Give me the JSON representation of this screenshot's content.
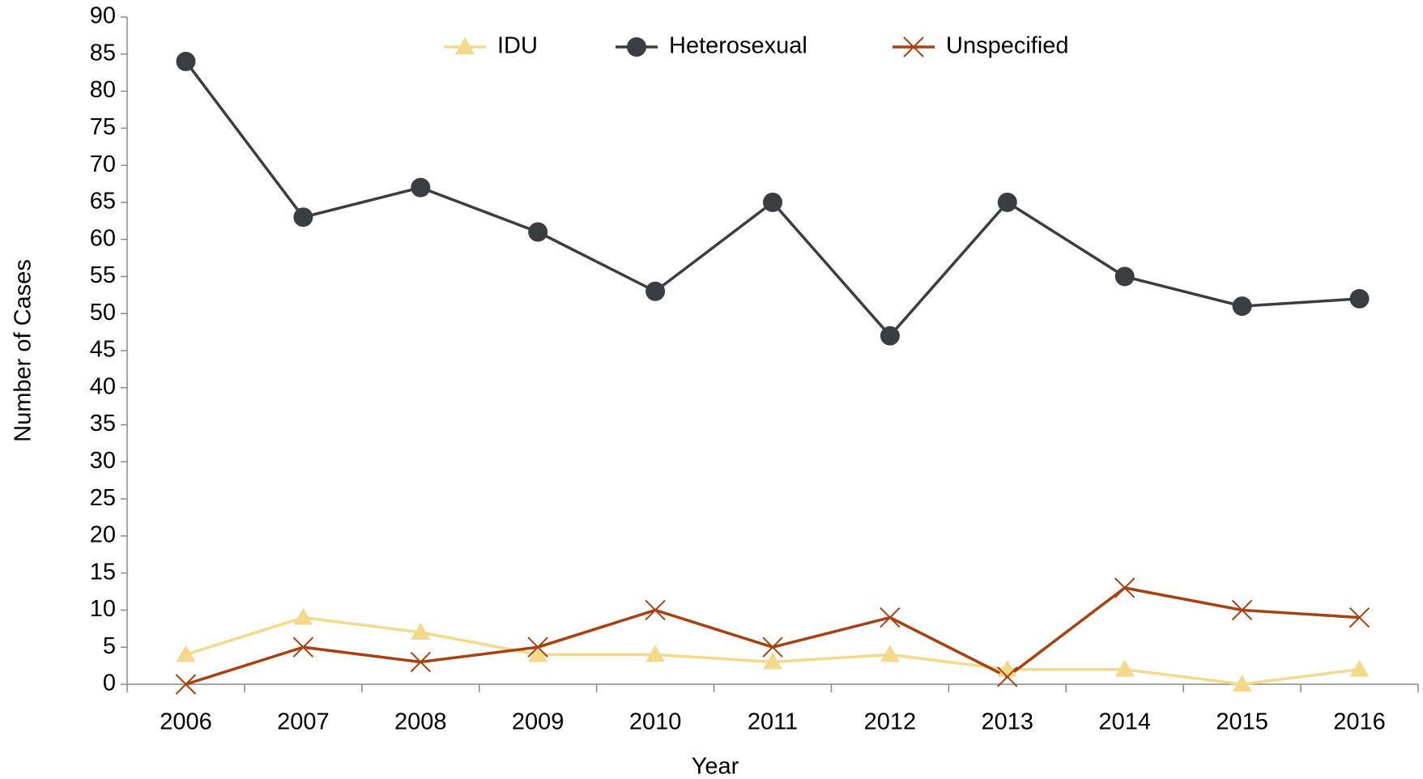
{
  "chart_data": {
    "type": "line",
    "x_label": "Year",
    "y_label": "Number of Cases",
    "categories": [
      "2006",
      "2007",
      "2008",
      "2009",
      "2010",
      "2011",
      "2012",
      "2013",
      "2014",
      "2015",
      "2016"
    ],
    "series": [
      {
        "name": "IDU",
        "color": "#f5d98a",
        "marker": "triangle",
        "values": [
          4,
          9,
          7,
          4,
          4,
          3,
          4,
          2,
          2,
          0,
          2
        ]
      },
      {
        "name": "Heterosexual",
        "color": "#3a3d42",
        "marker": "circle",
        "values": [
          84,
          63,
          67,
          61,
          53,
          65,
          47,
          65,
          55,
          51,
          52
        ]
      },
      {
        "name": "Unspecified",
        "color": "#a8400f",
        "marker": "x",
        "values": [
          0,
          5,
          3,
          5,
          10,
          5,
          9,
          1,
          13,
          10,
          9
        ]
      }
    ],
    "ylim": [
      0,
      90
    ],
    "yticks": [
      0,
      5,
      10,
      15,
      20,
      25,
      30,
      35,
      40,
      45,
      50,
      55,
      60,
      65,
      70,
      75,
      80,
      85,
      90
    ],
    "grid": false,
    "legend": "top"
  }
}
